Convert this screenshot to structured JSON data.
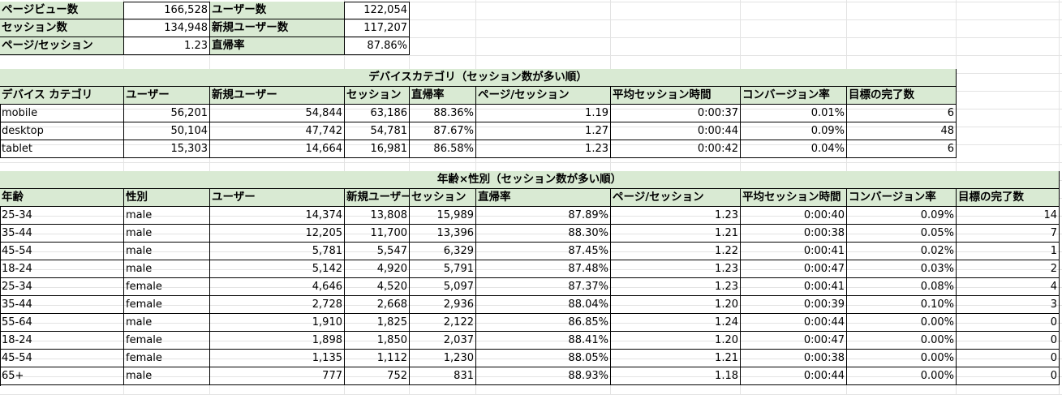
{
  "summary": [
    {
      "label": "ページビュー数",
      "value": "166,528",
      "label2": "ユーザー数",
      "value2": "122,054"
    },
    {
      "label": "セッション数",
      "value": "134,948",
      "label2": "新規ユーザー数",
      "value2": "117,207"
    },
    {
      "label": "ページ/セッション",
      "value": "1.23",
      "label2": "直帰率",
      "value2": "87.86%"
    }
  ],
  "device_table": {
    "title": "デバイスカテゴリ（セッション数が多い順）",
    "headers": [
      "デバイス カテゴリ",
      "ユーザー",
      "新規ユーザー",
      "セッション",
      "直帰率",
      "ページ/セッション",
      "平均セッション時間",
      "コンバージョン率",
      "目標の完了数"
    ],
    "rows": [
      [
        "mobile",
        "56,201",
        "54,844",
        "63,186",
        "88.36%",
        "1.19",
        "0:00:37",
        "0.01%",
        "6"
      ],
      [
        "desktop",
        "50,104",
        "47,742",
        "54,781",
        "87.67%",
        "1.27",
        "0:00:44",
        "0.09%",
        "48"
      ],
      [
        "tablet",
        "15,303",
        "14,664",
        "16,981",
        "86.58%",
        "1.23",
        "0:00:42",
        "0.04%",
        "6"
      ]
    ]
  },
  "age_table": {
    "title": "年齢×性別（セッション数が多い順）",
    "headers": [
      "年齢",
      "性別",
      "ユーザー",
      "新規ユーザー",
      "セッション",
      "直帰率",
      "ページ/セッション",
      "平均セッション時間",
      "コンバージョン率",
      "目標の完了数"
    ],
    "rows": [
      [
        "25-34",
        "male",
        "14,374",
        "13,808",
        "15,989",
        "87.89%",
        "1.23",
        "0:00:40",
        "0.09%",
        "14"
      ],
      [
        "35-44",
        "male",
        "12,205",
        "11,700",
        "13,396",
        "88.30%",
        "1.21",
        "0:00:38",
        "0.05%",
        "7"
      ],
      [
        "45-54",
        "male",
        "5,781",
        "5,547",
        "6,329",
        "87.45%",
        "1.22",
        "0:00:41",
        "0.02%",
        "1"
      ],
      [
        "18-24",
        "male",
        "5,142",
        "4,920",
        "5,791",
        "87.48%",
        "1.23",
        "0:00:47",
        "0.03%",
        "2"
      ],
      [
        "25-34",
        "female",
        "4,646",
        "4,520",
        "5,097",
        "87.37%",
        "1.23",
        "0:00:41",
        "0.08%",
        "4"
      ],
      [
        "35-44",
        "female",
        "2,728",
        "2,668",
        "2,936",
        "88.04%",
        "1.20",
        "0:00:39",
        "0.10%",
        "3"
      ],
      [
        "55-64",
        "male",
        "1,910",
        "1,825",
        "2,122",
        "86.85%",
        "1.24",
        "0:00:44",
        "0.00%",
        "0"
      ],
      [
        "18-24",
        "female",
        "1,898",
        "1,850",
        "2,037",
        "88.41%",
        "1.20",
        "0:00:47",
        "0.00%",
        "0"
      ],
      [
        "45-54",
        "female",
        "1,135",
        "1,112",
        "1,230",
        "88.05%",
        "1.21",
        "0:00:38",
        "0.00%",
        "0"
      ],
      [
        "65+",
        "male",
        "777",
        "752",
        "831",
        "88.93%",
        "1.18",
        "0:00:44",
        "0.00%",
        "0"
      ]
    ]
  }
}
